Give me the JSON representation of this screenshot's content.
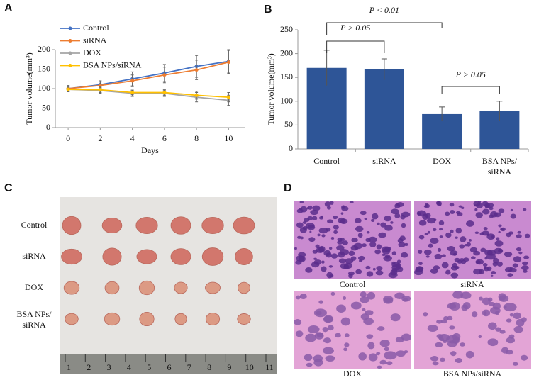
{
  "chart_data": [
    {
      "type": "line",
      "y_label": "Tumor volume(mm³)",
      "x_label": "Days",
      "x": [
        0,
        2,
        4,
        6,
        8,
        10
      ],
      "xlim": [
        -0.8,
        11
      ],
      "xticks": [
        0,
        2,
        4,
        6,
        8,
        10
      ],
      "ylim": [
        0,
        200
      ],
      "yticks": [
        0,
        50,
        100,
        150,
        200
      ],
      "series": [
        {
          "name": "Control",
          "color": "#4472c4",
          "values": [
            100,
            110,
            125,
            140,
            157,
            170
          ],
          "errors": [
            8,
            10,
            18,
            22,
            28,
            30
          ]
        },
        {
          "name": "siRNA",
          "color": "#ed7d31",
          "values": [
            100,
            108,
            120,
            135,
            148,
            168
          ],
          "errors": [
            7,
            9,
            15,
            20,
            25,
            30
          ]
        },
        {
          "name": "DOX",
          "color": "#a5a5a5",
          "values": [
            98,
            95,
            88,
            88,
            78,
            70
          ],
          "errors": [
            6,
            7,
            8,
            8,
            12,
            13
          ]
        },
        {
          "name": "BSA NPs/siRNA",
          "color": "#ffc000",
          "values": [
            98,
            97,
            90,
            90,
            83,
            78
          ],
          "errors": [
            6,
            7,
            6,
            7,
            10,
            12
          ]
        }
      ]
    },
    {
      "type": "bar",
      "y_label": "Tumor volume(mm³)",
      "categories": [
        "Control",
        "siRNA",
        "DOX",
        "BSA NPs/\nsiRNA"
      ],
      "values": [
        170,
        167,
        73,
        79
      ],
      "errors": [
        37,
        22,
        15,
        21
      ],
      "color": "#2e5597",
      "ylim": [
        0,
        250
      ],
      "yticks": [
        0,
        50,
        100,
        150,
        200,
        250
      ],
      "annotations": [
        "P > 0.05",
        "P < 0.01",
        "P > 0.05"
      ]
    }
  ],
  "panel_labels": [
    "A",
    "B",
    "C",
    "D"
  ],
  "photo_c": {
    "row_labels": [
      "Control",
      "siRNA",
      "DOX",
      "BSA NPs/\nsiRNA"
    ],
    "ruler_labels": [
      "1",
      "2",
      "3",
      "4",
      "5",
      "6",
      "7",
      "8",
      "9",
      "10",
      "11"
    ]
  },
  "photo_d": {
    "captions": [
      "Control",
      "siRNA",
      "DOX",
      "BSA NPs/siRNA"
    ]
  }
}
